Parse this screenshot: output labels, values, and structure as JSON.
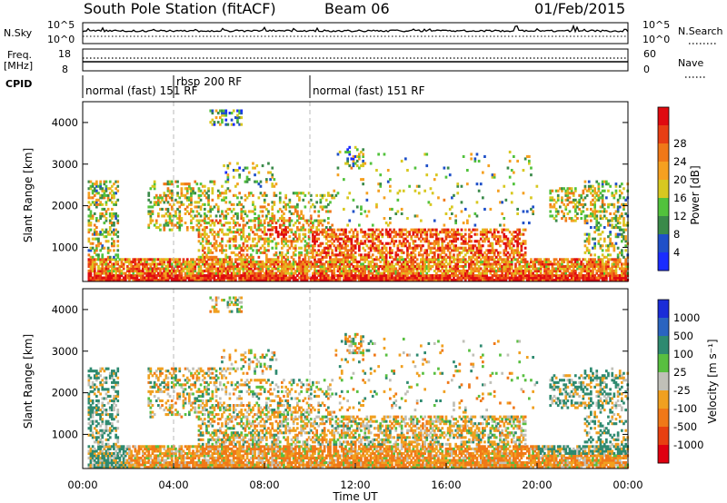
{
  "header": {
    "station": "South Pole Station (fitACF)",
    "beam": "Beam 06",
    "date": "01/Feb/2015"
  },
  "strips": {
    "nsky_label": "N.Sky",
    "nsky_ticks": [
      "10^5",
      "10^0"
    ],
    "nsearch_label": "N.Search",
    "nsearch_ticks": [
      "10^5",
      "10^0"
    ],
    "freq_label_1": "Freq.",
    "freq_label_2": "[MHz]",
    "freq_ticks": [
      "18",
      "8"
    ],
    "nave_label": "Nave",
    "nave_ticks": [
      "60",
      "0"
    ],
    "cpid_label": "CPID",
    "cpid_segments": [
      {
        "start": 0,
        "end": 4,
        "label": "normal (fast) 151 RF"
      },
      {
        "start": 4,
        "end": 10,
        "label": "rbsp 200 RF"
      },
      {
        "start": 10,
        "end": 24,
        "label": "normal (fast) 151 RF"
      }
    ]
  },
  "chart_data": [
    {
      "type": "heatmap",
      "name": "power",
      "ylabel": "Slant Range [km]",
      "ylim": [
        180,
        4500
      ],
      "yticks": [
        "1000",
        "2000",
        "3000",
        "4000"
      ],
      "xlim": [
        0,
        24
      ],
      "colorbar_label": "Power [dB]",
      "colorbar_ticks": [
        "4",
        "8",
        "12",
        "16",
        "20",
        "24",
        "28"
      ],
      "colors": [
        "#1a2cff",
        "#1f50c8",
        "#3a8a4a",
        "#52c23c",
        "#d8c820",
        "#f5a020",
        "#f07818",
        "#e83e14",
        "#e00a10"
      ]
    },
    {
      "type": "heatmap",
      "name": "velocity",
      "ylabel": "Slant Range [km]",
      "ylim": [
        180,
        4500
      ],
      "yticks": [
        "1000",
        "2000",
        "3000",
        "4000"
      ],
      "xlim": [
        0,
        24
      ],
      "xticks": [
        "00:00",
        "04:00",
        "08:00",
        "12:00",
        "16:00",
        "20:00",
        "00:00"
      ],
      "xlabel": "Time UT",
      "colorbar_label": "Velocity [m s⁻¹]",
      "colorbar_ticks": [
        "1000",
        "500",
        "100",
        "25",
        "-25",
        "-100",
        "-500",
        "-1000"
      ],
      "colors": [
        "#1a2cd8",
        "#2a64c0",
        "#2e8a70",
        "#58bf40",
        "#c0c0b8",
        "#f0a020",
        "#f07818",
        "#e84010",
        "#e00010"
      ]
    }
  ]
}
